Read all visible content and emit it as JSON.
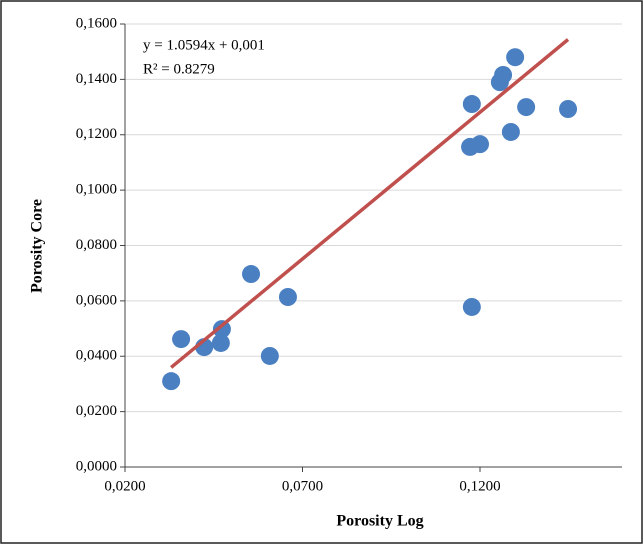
{
  "chart_data": {
    "type": "scatter",
    "x_label": "Porosity Log",
    "y_label": "Porosity Core",
    "series": [
      {
        "color": "#4a7fc1",
        "x": [
          0.033,
          0.0358,
          0.0423,
          0.0473,
          0.047,
          0.0555,
          0.0608,
          0.0659,
          0.1177,
          0.1177,
          0.1172,
          0.12,
          0.1256,
          0.1265,
          0.1299,
          0.1287,
          0.133,
          0.1448
        ],
        "values": [
          0.031,
          0.0462,
          0.0433,
          0.0498,
          0.0448,
          0.0697,
          0.0401,
          0.0614,
          0.1311,
          0.0578,
          0.1156,
          0.1166,
          0.139,
          0.1416,
          0.148,
          0.121,
          0.13,
          0.1293
        ]
      }
    ],
    "trendline": {
      "slope": 1.0594,
      "intercept": 0.001,
      "color": "#c0504d",
      "equation": "y = 1.0594x + 0,001",
      "r_squared_label": "R² = 0.8279"
    },
    "xlim": [
      0.02,
      0.16
    ],
    "xticks": [
      {
        "value": 0.02,
        "label": "0,0200"
      },
      {
        "value": 0.07,
        "label": "0,0700"
      },
      {
        "value": 0.12,
        "label": "0,1200"
      }
    ],
    "ylim": [
      0,
      0.16
    ],
    "yticks": [
      {
        "value": 0,
        "label": "0,0000"
      },
      {
        "value": 0.02,
        "label": "0,0200"
      },
      {
        "value": 0.04,
        "label": "0,0400"
      },
      {
        "value": 0.06,
        "label": "0,0600"
      },
      {
        "value": 0.08,
        "label": "0,0800"
      },
      {
        "value": 0.1,
        "label": "0,1000"
      },
      {
        "value": 0.12,
        "label": "0,1200"
      },
      {
        "value": 0.14,
        "label": "0,1400"
      },
      {
        "value": 0.16,
        "label": "0,1600"
      }
    ],
    "grid": true
  }
}
